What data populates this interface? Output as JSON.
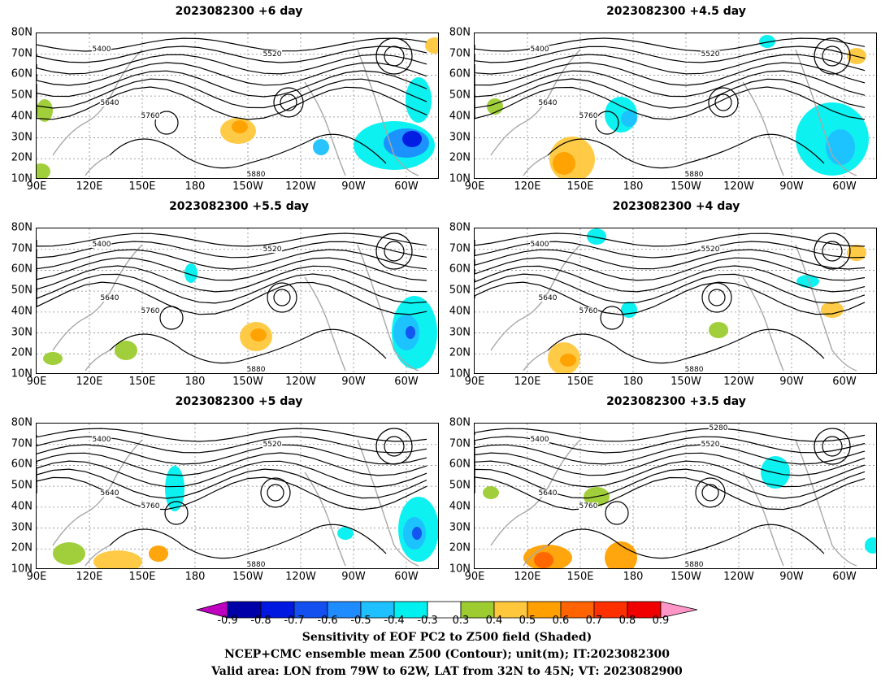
{
  "panels": [
    {
      "title": "2023082300  +6 day"
    },
    {
      "title": "2023082300  +4.5  day"
    },
    {
      "title": "2023082300  +5.5  day"
    },
    {
      "title": "2023082300  +4  day"
    },
    {
      "title": "2023082300  +5  day"
    },
    {
      "title": "2023082300  +3.5  day"
    }
  ],
  "axes": {
    "lat_labels": [
      "80N",
      "70N",
      "60N",
      "50N",
      "40N",
      "30N",
      "20N",
      "10N"
    ],
    "lon_labels": [
      "90E",
      "120E",
      "150E",
      "180",
      "150W",
      "120W",
      "90W",
      "60W"
    ]
  },
  "contour_labels": [
    "5280",
    "5400",
    "5520",
    "5640",
    "5760",
    "5880"
  ],
  "colorbar": {
    "labels": [
      "-0.9",
      "-0.8",
      "-0.7",
      "-0.6",
      "-0.5",
      "-0.4",
      "-0.3",
      "0.3",
      "0.4",
      "0.5",
      "0.6",
      "0.7",
      "0.8",
      "0.9"
    ],
    "colors": [
      "#c000c0",
      "#0000a8",
      "#0018e0",
      "#1450f0",
      "#1e8cff",
      "#1ec0ff",
      "#00f0f0",
      "#ffffff",
      "#9ccc30",
      "#ffc83c",
      "#ffa000",
      "#ff6400",
      "#ff3000",
      "#f00000",
      "#ff96c8"
    ]
  },
  "caption": {
    "line1": "Sensitivity of EOF PC2 to Z500 field (Shaded)",
    "line2": "NCEP+CMC ensemble mean Z500 (Contour); unit(m); IT:2023082300",
    "line3": "Valid area: LON from 79W to 62W, LAT from 32N to 45N; VT: 2023082900"
  }
}
